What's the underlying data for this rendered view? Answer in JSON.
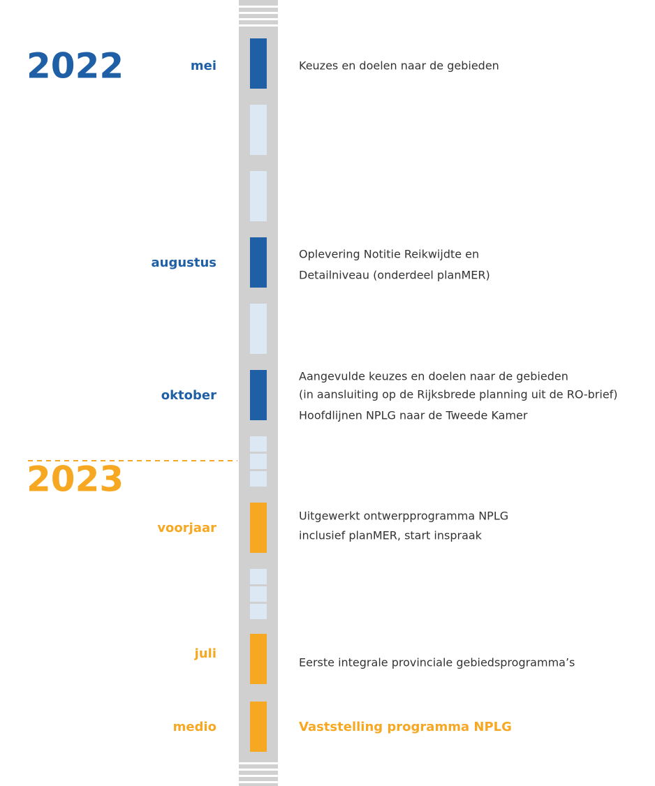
{
  "years": [
    "2022",
    "2023"
  ],
  "events": [
    {
      "period": "mei",
      "lines": [
        "Keuzes en doelen naar de gebieden"
      ]
    },
    {
      "period": "augustus",
      "lines": [
        "Oplevering Notitie Reikwijdte en",
        "Detailniveau (onderdeel planMER)"
      ]
    },
    {
      "period": "oktober",
      "lines": [
        "Aangevulde keuzes en doelen naar de gebieden",
        "(in aansluiting op de Rijksbrede planning uit de RO-brief)",
        "Hoofdlijnen NPLG naar de Tweede Kamer"
      ]
    },
    {
      "period": "voorjaar",
      "lines": [
        "Uitgewerkt ontwerpprogramma NPLG",
        "inclusief planMER, start inspraak"
      ]
    },
    {
      "period": "juli",
      "lines": [
        "Eerste integrale provinciale gebiedsprogramma’s"
      ]
    },
    {
      "period": "medio",
      "lines": [
        "Vaststelling programma NPLG"
      ]
    }
  ]
}
